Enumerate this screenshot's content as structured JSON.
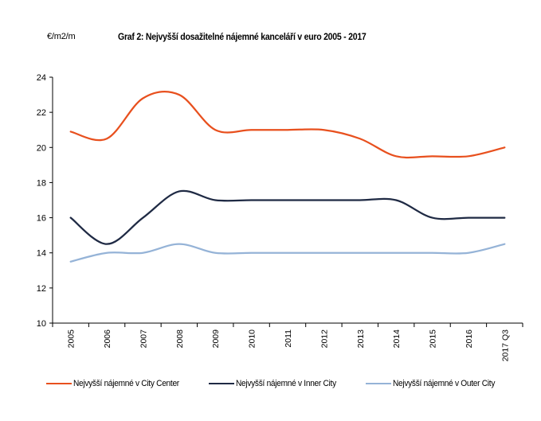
{
  "chart_data": {
    "type": "line",
    "title": "Graf 2: Nejvyšší dosažitelné nájemné kanceláří v euro 2005 - 2017",
    "ylabel": "€/m2/m",
    "xlabel": "",
    "ylim": [
      10,
      24
    ],
    "yticks": [
      10,
      12,
      14,
      16,
      18,
      20,
      22,
      24
    ],
    "ytick_labels": [
      "10",
      "12",
      "14",
      "16",
      "18",
      "20",
      "22",
      "24"
    ],
    "grid": false,
    "smooth": true,
    "legend_position": "bottom",
    "categories": [
      "2005",
      "2006",
      "2007",
      "2008",
      "2009",
      "2010",
      "2011",
      "2012",
      "2013",
      "2014",
      "2015",
      "2016",
      "2017 Q3"
    ],
    "series": [
      {
        "name": "Nejvyšší nájemné v City Center",
        "color": "#E8501E",
        "values": [
          20.9,
          20.5,
          22.8,
          23.0,
          21.0,
          21.0,
          21.0,
          21.0,
          20.5,
          19.5,
          19.5,
          19.5,
          20.0
        ]
      },
      {
        "name": "Nejvyšší nájemné v Inner City",
        "color": "#1F2A44",
        "values": [
          16.0,
          14.5,
          16.0,
          17.5,
          17.0,
          17.0,
          17.0,
          17.0,
          17.0,
          17.0,
          16.0,
          16.0,
          16.0
        ]
      },
      {
        "name": "Nejvyšší nájemné v Outer City",
        "color": "#95B3D7",
        "values": [
          13.5,
          14.0,
          14.0,
          14.5,
          14.0,
          14.0,
          14.0,
          14.0,
          14.0,
          14.0,
          14.0,
          14.0,
          14.5
        ]
      }
    ]
  }
}
